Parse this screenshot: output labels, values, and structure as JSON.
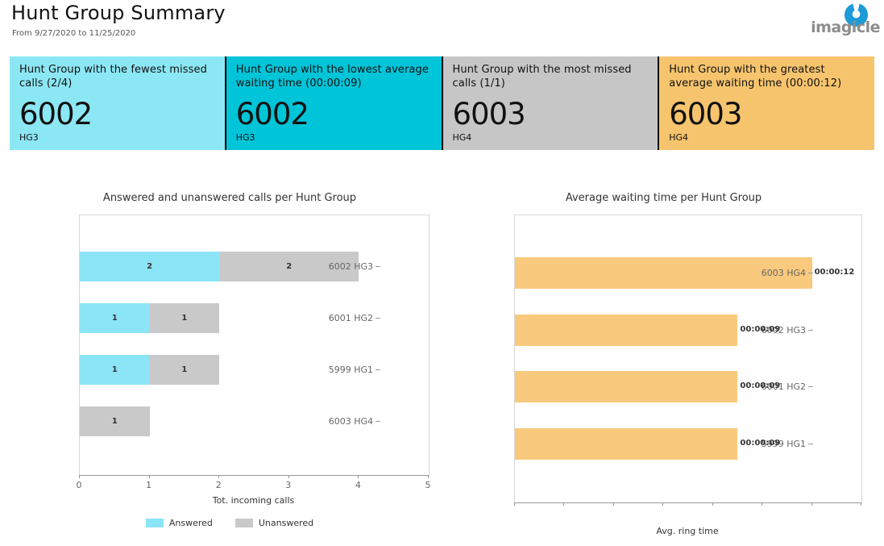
{
  "header": {
    "title": "Hunt Group Summary",
    "date_range": "From 9/27/2020 to 11/25/2020",
    "logo_text": "imagicle",
    "logo_icon_color": "#1d9bd6",
    "logo_text_color": "#8d8d8d"
  },
  "cards": [
    {
      "label": "Hunt Group with the fewest missed calls (2/4)",
      "value": "6002",
      "sublabel": "HG3",
      "bg": "#8ce7f5"
    },
    {
      "label": "Hunt Group with the lowest average waiting time (00:00:09)",
      "value": "6002",
      "sublabel": "HG3",
      "bg": "#00c4d8"
    },
    {
      "label": "Hunt Group with the most missed calls (1/1)",
      "value": "6003",
      "sublabel": "HG4",
      "bg": "#c6c6c6"
    },
    {
      "label": "Hunt Group with the greatest average waiting time (00:00:12)",
      "value": "6003",
      "sublabel": "HG4",
      "bg": "#f7c46e"
    }
  ],
  "chart_data": [
    {
      "type": "bar",
      "orientation": "horizontal",
      "stacked": true,
      "title": "Answered and unanswered calls per Hunt Group",
      "categories": [
        "6002 HG3",
        "6001 HG2",
        "5999 HG1",
        "6003 HG4"
      ],
      "series": [
        {
          "name": "Answered",
          "color": "#8ce5f6",
          "values": [
            2,
            1,
            1,
            0
          ]
        },
        {
          "name": "Unanswered",
          "color": "#c9c9c9",
          "values": [
            2,
            1,
            1,
            1
          ]
        }
      ],
      "xlabel": "Tot. incoming calls",
      "xlim": [
        0,
        5
      ],
      "xticks": [
        0,
        1,
        2,
        3,
        4,
        5
      ],
      "legend_position": "bottom",
      "grid": false
    },
    {
      "type": "bar",
      "orientation": "horizontal",
      "stacked": false,
      "title": "Average waiting time per Hunt Group",
      "categories": [
        "6003 HG4",
        "6002 HG3",
        "6001 HG2",
        "5999 HG1"
      ],
      "series": [
        {
          "name": "Avg. ring time",
          "color": "#f9c97d",
          "values_seconds": [
            12,
            9,
            9,
            9
          ],
          "value_labels": [
            "00:00:12",
            "00:00:09",
            "00:00:09",
            "00:00:09"
          ]
        }
      ],
      "xlabel": "Avg. ring time",
      "xlim_seconds": [
        0,
        14
      ],
      "tick_count": 8,
      "tick_labels_shown": false,
      "legend_position": "none",
      "grid": false
    }
  ]
}
